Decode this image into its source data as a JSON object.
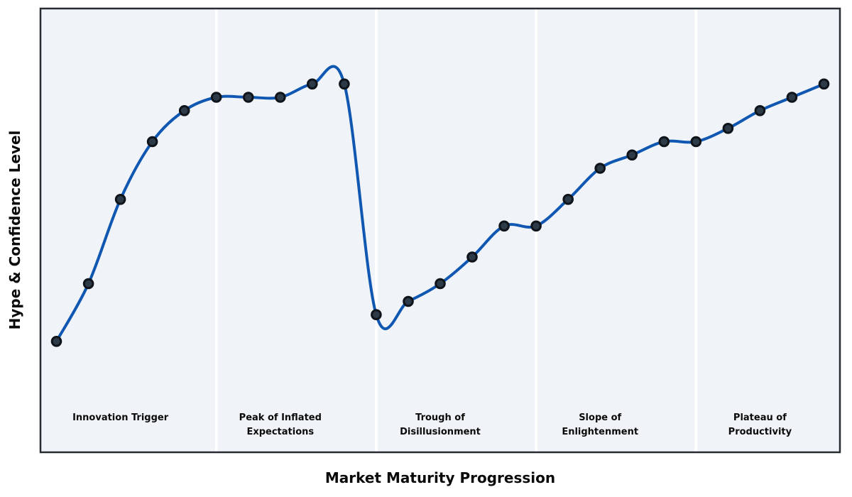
{
  "figure": {
    "xlabel": "Market Maturity Progression",
    "ylabel": "Hype & Confidence Level"
  },
  "chart_data": {
    "type": "line",
    "title": "",
    "xlabel": "Market Maturity Progression",
    "ylabel": "Hype & Confidence Level",
    "x": [
      0,
      1,
      2,
      3,
      4,
      5,
      6,
      7,
      8,
      9,
      10,
      11,
      12,
      13,
      14,
      15,
      16,
      17,
      18,
      19,
      20,
      21,
      22,
      23,
      24
    ],
    "values": [
      25,
      38,
      57,
      70,
      77,
      80,
      80,
      80,
      83,
      83,
      31,
      34,
      38,
      44,
      51,
      51,
      57,
      64,
      67,
      70,
      70,
      73,
      77,
      80,
      83
    ],
    "xlim": [
      -0.5,
      24.5
    ],
    "ylim": [
      0,
      100
    ],
    "grid": false,
    "legend": null,
    "ticks": "none",
    "smoothing": "cubic-spline",
    "phase_label_y": 8,
    "phases": [
      {
        "label": "Innovation Trigger",
        "start": -0.5,
        "end": 5,
        "label_x": 2
      },
      {
        "label": "Peak of Inflated\nExpectations",
        "start": 5,
        "end": 10,
        "label_x": 7
      },
      {
        "label": "Trough of\nDisillusionment",
        "start": 10,
        "end": 15,
        "label_x": 12
      },
      {
        "label": "Slope of\nEnlightenment",
        "start": 15,
        "end": 20,
        "label_x": 17
      },
      {
        "label": "Plateau of\nProductivity",
        "start": 20,
        "end": 24.5,
        "label_x": 22
      }
    ],
    "colors": {
      "line": "#1057b1",
      "marker_fill": "#2d3a48",
      "marker_edge": "#0f141a",
      "plot_bg": "#f0f4f8",
      "divider": "#ffffff",
      "frame": "#262b31",
      "text": "#0a0a0a"
    }
  }
}
